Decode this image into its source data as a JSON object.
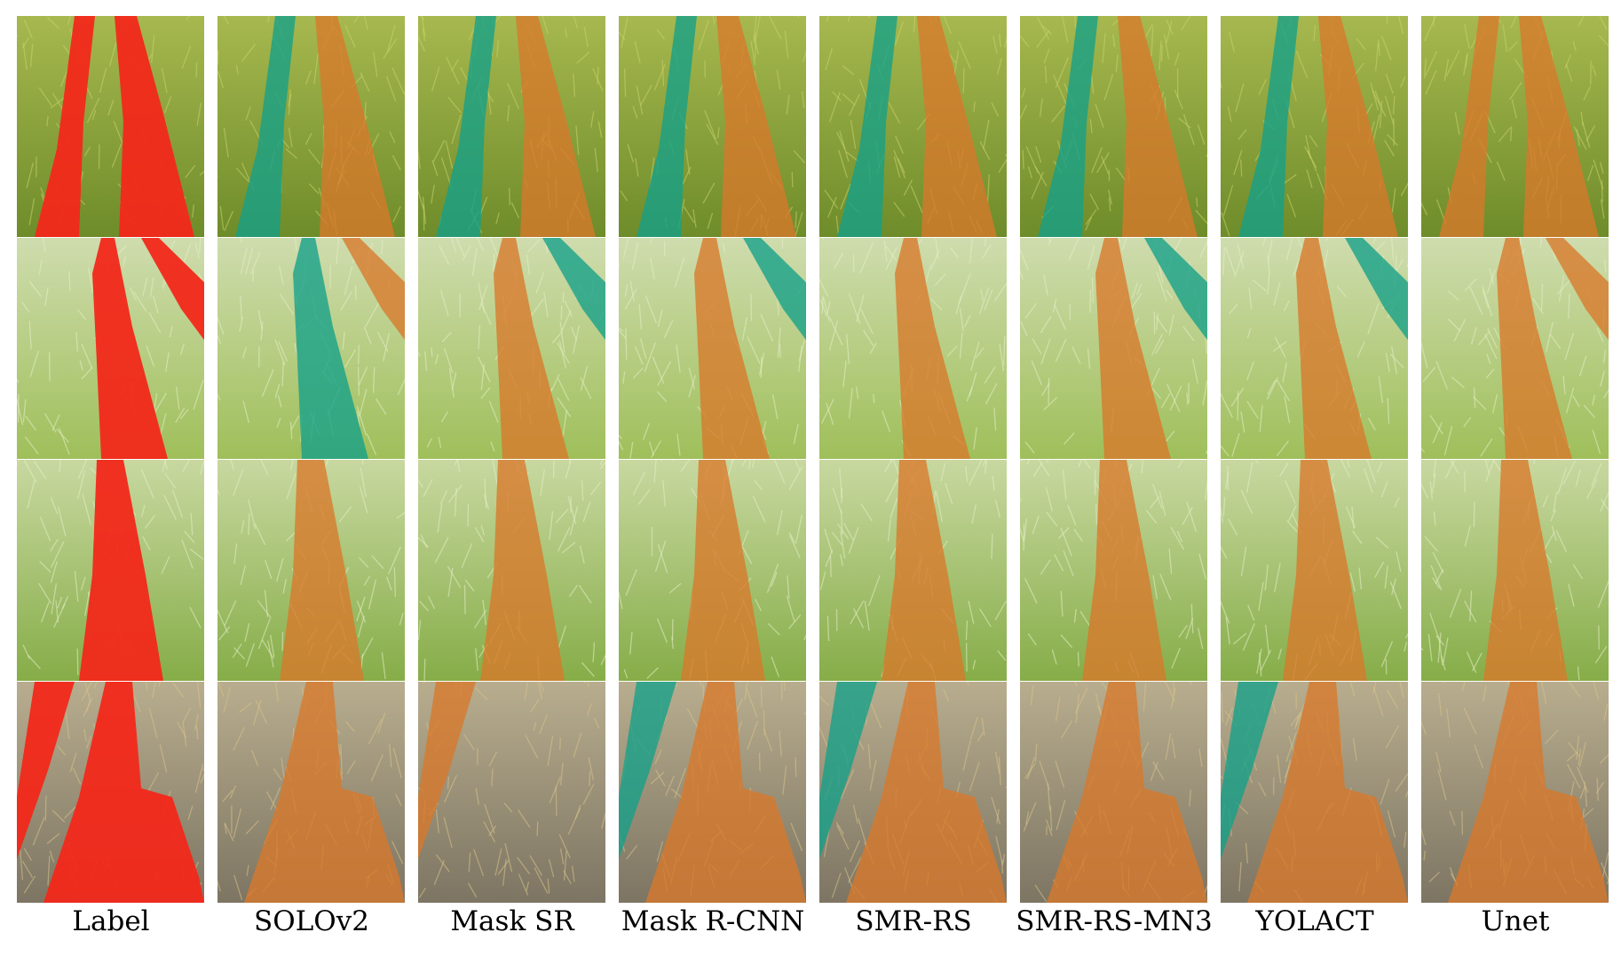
{
  "figure": {
    "columns": [
      "Label",
      "SOLOv2",
      "Mask SR",
      "Mask R-CNN",
      "SMR-RS",
      "SMR-RS-MN3",
      "YOLACT",
      "Unet"
    ],
    "rows": 4,
    "colors": {
      "label_mask": "#f2281a",
      "orange_mask": "#d9782a",
      "teal_mask": "#13a089",
      "field_green": "#7fa83a",
      "field_light": "#b9c98a",
      "stubble": "#8a7f6a"
    }
  }
}
